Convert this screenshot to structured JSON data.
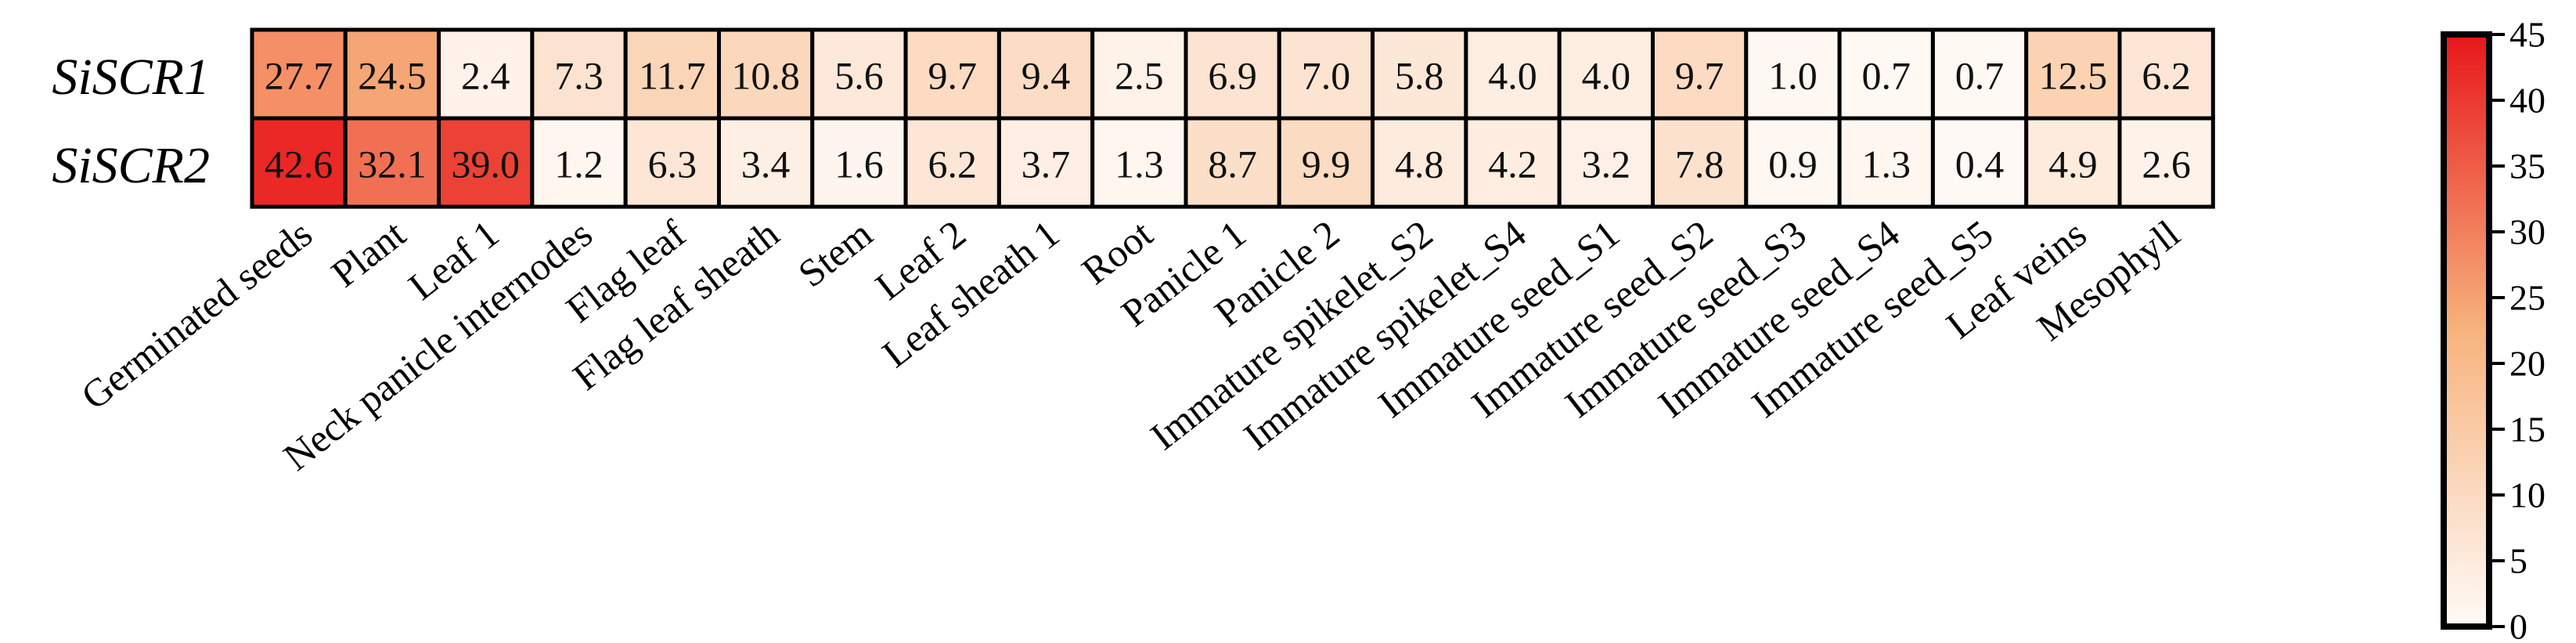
{
  "chart_data": {
    "type": "heatmap",
    "rows": [
      "SiSCR1",
      "SiSCR2"
    ],
    "columns": [
      "Germinated seeds",
      "Plant",
      "Leaf 1",
      "Neck panicle internodes",
      "Flag leaf",
      "Flag leaf sheath",
      "Stem",
      "Leaf 2",
      "Leaf sheath 1",
      "Root",
      "Panicle 1",
      "Panicle 2",
      "Immature spikelet_S2",
      "Immature spikelet_S4",
      "Immature seed_S1",
      "Immature seed_S2",
      "Immature seed_S3",
      "Immature seed_S4",
      "Immature seed_S5",
      "Leaf veins",
      "Mesophyll"
    ],
    "values": [
      [
        27.7,
        24.5,
        2.4,
        7.3,
        11.7,
        10.8,
        5.6,
        9.7,
        9.4,
        2.5,
        6.9,
        7.0,
        5.8,
        4.0,
        4.0,
        9.7,
        1.0,
        0.7,
        0.7,
        12.5,
        6.2
      ],
      [
        42.6,
        32.1,
        39.0,
        1.2,
        6.3,
        3.4,
        1.6,
        6.2,
        3.7,
        1.3,
        8.7,
        9.9,
        4.8,
        4.2,
        3.2,
        7.8,
        0.9,
        1.3,
        0.4,
        4.9,
        2.6
      ]
    ],
    "cell_labels": [
      [
        "27.7",
        "24.5",
        "2.4",
        "7.3",
        "11.7",
        "10.8",
        "5.6",
        "9.7",
        "9.4",
        "2.5",
        "6.9",
        "7.0",
        "5.8",
        "4.0",
        "4.0",
        "9.7",
        "1.0",
        "0.7",
        "0.7",
        "12.5",
        "6.2"
      ],
      [
        "42.6",
        "32.1",
        "39.0",
        "1.2",
        "6.3",
        "3.4",
        "1.6",
        "6.2",
        "3.7",
        "1.3",
        "8.7",
        "9.9",
        "4.8",
        "4.2",
        "3.2",
        "7.8",
        "0.9",
        "1.3",
        "0.4",
        "4.9",
        "2.6"
      ]
    ],
    "colorbar": {
      "range": [
        0,
        45
      ],
      "ticks": [
        0,
        5,
        10,
        15,
        20,
        25,
        30,
        35,
        40,
        45
      ],
      "tick_labels": [
        "0",
        "5",
        "10",
        "15",
        "20",
        "25",
        "30",
        "35",
        "40",
        "45"
      ],
      "colors": [
        "#fffaf7",
        "#f7b37d",
        "#e8171b"
      ],
      "placement": "right"
    },
    "title": "",
    "xlabel": "",
    "ylabel": ""
  }
}
